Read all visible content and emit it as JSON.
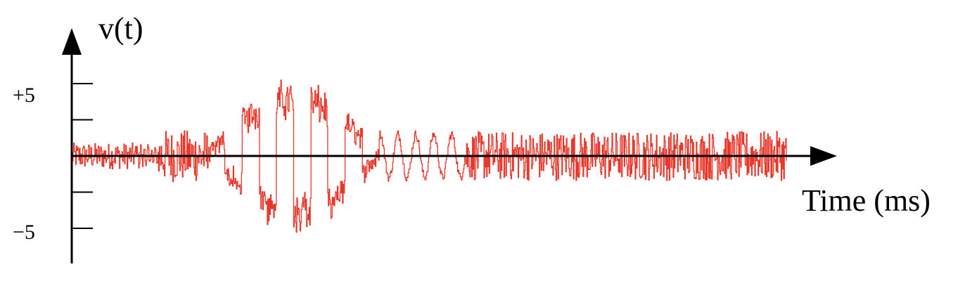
{
  "chart_data": {
    "type": "line",
    "title": "",
    "ylabel": "v(t)",
    "xlabel": "Time (ms)",
    "ylim": [
      -7.5,
      7.5
    ],
    "y_ticks": [
      -5,
      -2.5,
      0,
      2.5,
      5
    ],
    "y_tick_labels": [
      {
        "value": 5,
        "label": "+5"
      },
      {
        "value": -5,
        "label": "−5"
      }
    ],
    "grid": false,
    "series": [
      {
        "color": "#e8382c",
        "description_points": "speech-like waveform: small noise, a burst of large oscillations, then sustained noisy segment",
        "segments": [
          {
            "t0": 0,
            "t1": 9,
            "amp": 0.9,
            "period": 0.22,
            "kind": "noise"
          },
          {
            "t0": 9,
            "t1": 12,
            "amp": 0.6,
            "period": 0.5,
            "kind": "tone"
          },
          {
            "t0": 12,
            "t1": 19,
            "amp": 1.8,
            "period": 0.35,
            "kind": "noise"
          },
          {
            "t0": 19,
            "t1": 43,
            "amp": 5.0,
            "period": 4.8,
            "kind": "burst"
          },
          {
            "t0": 43,
            "t1": 55,
            "amp": 1.5,
            "period": 2.5,
            "kind": "tone"
          },
          {
            "t0": 55,
            "t1": 100,
            "amp": 1.7,
            "period": 0.18,
            "kind": "noise"
          }
        ]
      }
    ]
  }
}
